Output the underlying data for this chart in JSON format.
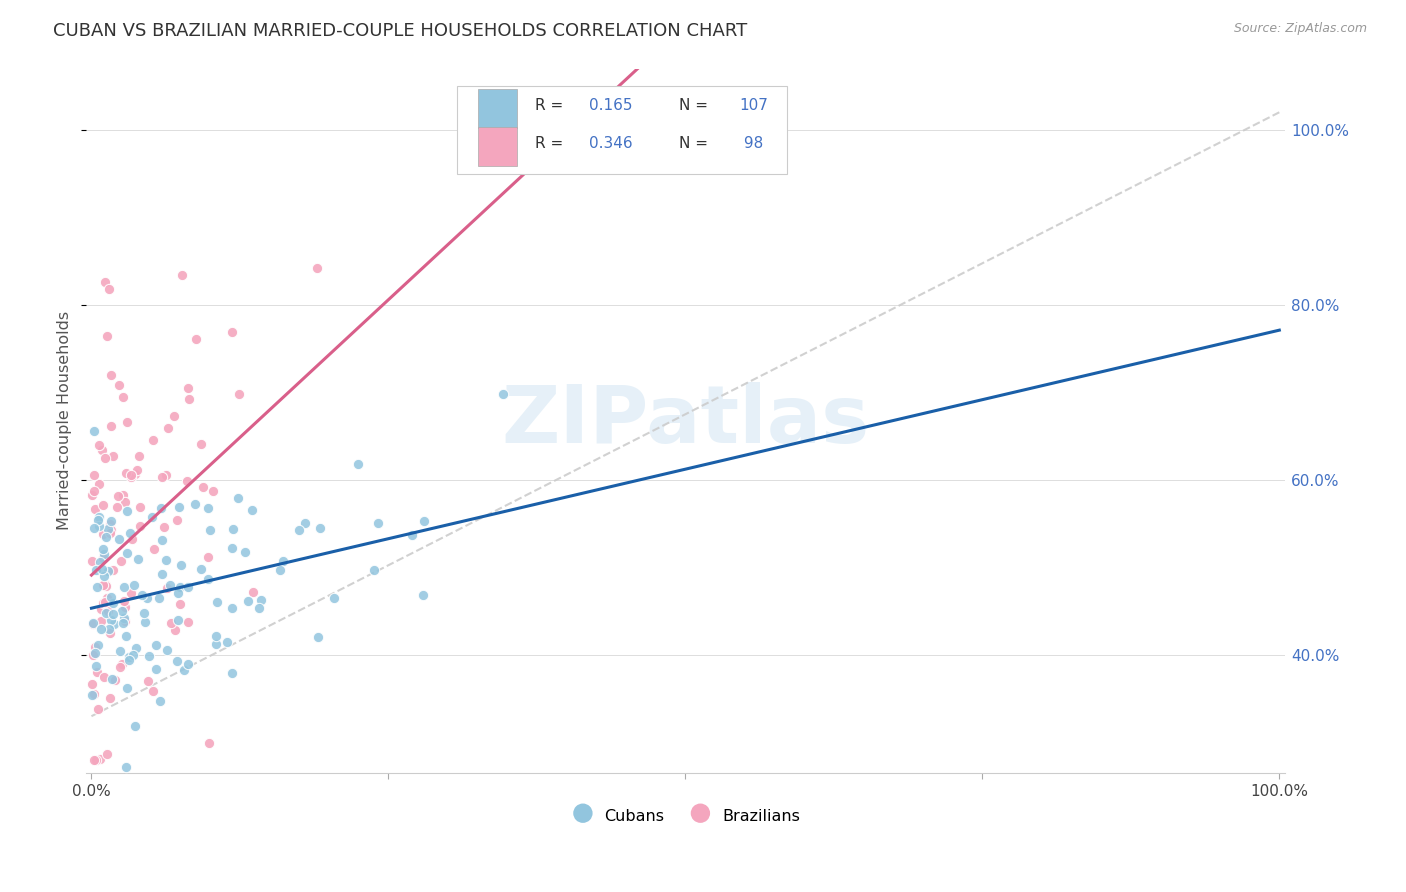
{
  "title": "CUBAN VS BRAZILIAN MARRIED-COUPLE HOUSEHOLDS CORRELATION CHART",
  "source": "Source: ZipAtlas.com",
  "ylabel": "Married-couple Households",
  "cubans_R": 0.165,
  "cubans_N": 107,
  "brazilians_R": 0.346,
  "brazilians_N": 98,
  "cubans_color": "#92c5de",
  "brazilians_color": "#f4a6be",
  "cubans_line_color": "#1a5fa8",
  "brazilians_line_color": "#d95f8a",
  "diagonal_color": "#cccccc",
  "watermark": "ZIPatlas",
  "legend_cubans": "Cubans",
  "legend_brazilians": "Brazilians",
  "stat_color": "#4472c4",
  "ytick_color": "#4472c4"
}
